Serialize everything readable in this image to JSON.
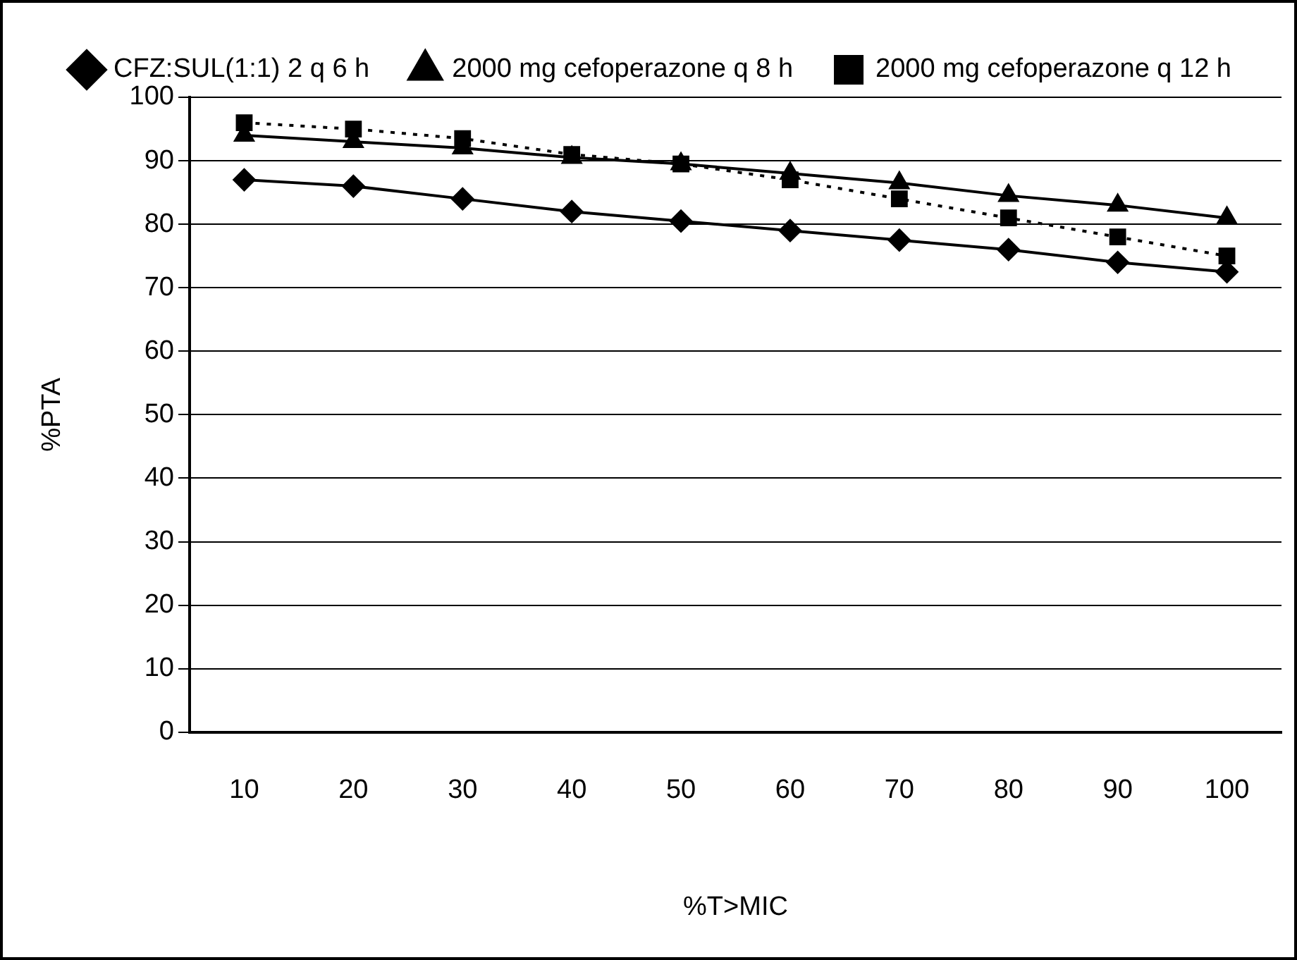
{
  "chart_data": {
    "type": "line",
    "xlabel": "%T>MIC",
    "ylabel": "%PTA",
    "categories": [
      "10",
      "20",
      "30",
      "40",
      "50",
      "60",
      "70",
      "80",
      "90",
      "100"
    ],
    "series": [
      {
        "name": "CFZ:SUL(1:1) 2 q 6 h",
        "color": "#000000",
        "marker": "diamond",
        "line_style": "solid",
        "values": [
          87,
          86,
          84,
          82,
          80.5,
          79,
          77.5,
          76,
          74,
          72.5
        ]
      },
      {
        "name": "2000 mg cefoperazone q 8 h",
        "color": "#000000",
        "marker": "triangle",
        "line_style": "solid",
        "values": [
          94,
          93,
          92,
          90.5,
          89.5,
          88,
          86.5,
          84.5,
          83,
          81
        ]
      },
      {
        "name": "2000 mg cefoperazone q 12 h",
        "color": "#000000",
        "marker": "square",
        "line_style": "dotted",
        "values": [
          96,
          95,
          93.5,
          91,
          89.5,
          87,
          84,
          81,
          78,
          75
        ]
      }
    ],
    "ylim": [
      0,
      100
    ],
    "yticks": [
      0,
      10,
      20,
      30,
      40,
      50,
      60,
      70,
      80,
      90,
      100
    ],
    "grid": "y",
    "legend": "top"
  }
}
